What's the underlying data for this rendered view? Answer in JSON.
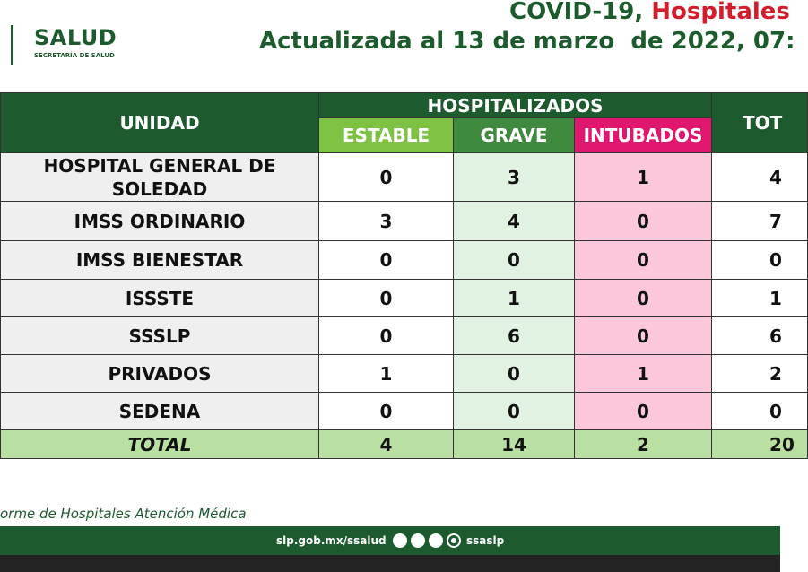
{
  "header": {
    "logo_title": "SALUD",
    "logo_subtitle": "SECRETARÍA DE SALUD",
    "title_start": "COVID-19,",
    "title_highlight": "Hospitales",
    "subtitle": "Actualizada al 13 de marzo  de 2022, 07:"
  },
  "table": {
    "unit_header": "UNIDAD",
    "group_header": "HOSPITALIZADOS",
    "columns": [
      "ESTABLE",
      "GRAVE",
      "INTUBADOS"
    ],
    "total_header": "TOT",
    "rows": [
      [
        "HOSPITAL GENERAL DE SOLEDAD",
        0,
        3,
        1,
        4
      ],
      [
        "IMSS ORDINARIO",
        3,
        4,
        0,
        7
      ],
      [
        "IMSS BIENESTAR",
        0,
        0,
        0,
        0
      ],
      [
        "ISSSTE",
        0,
        1,
        0,
        1
      ],
      [
        "SSSLP",
        0,
        6,
        0,
        6
      ],
      [
        "PRIVADOS",
        1,
        0,
        1,
        2
      ],
      [
        "SEDENA",
        0,
        0,
        0,
        0
      ]
    ],
    "total_row": [
      "TOTAL",
      4,
      14,
      2,
      20
    ]
  },
  "footer": {
    "note": "orme de Hospitales Atención Médica",
    "url": "slp.gob.mx/ssalud",
    "handle": "ssaslp"
  }
}
